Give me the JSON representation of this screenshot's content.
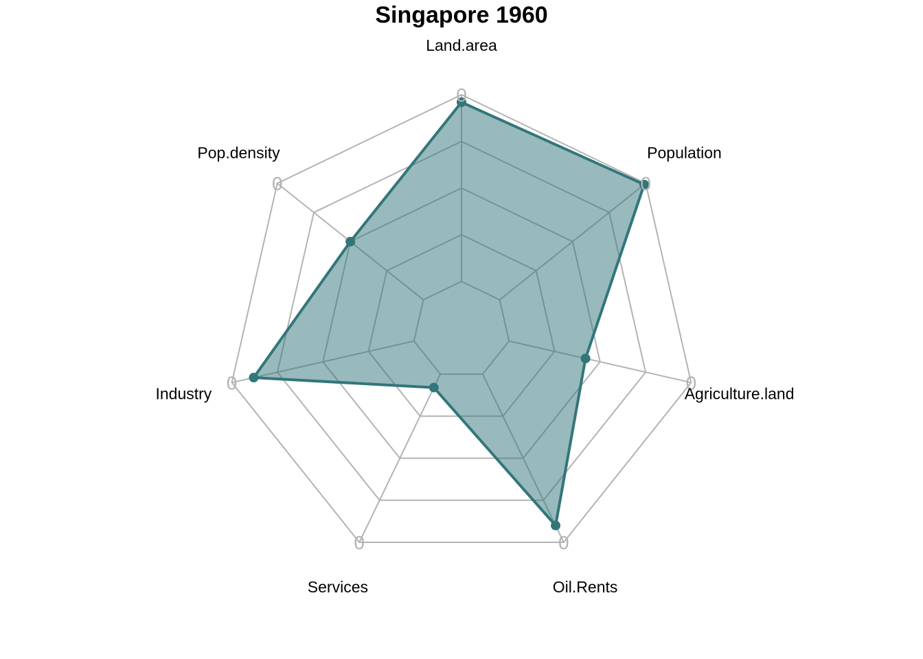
{
  "chart_data": {
    "type": "radar",
    "title": "Singapore 1960",
    "axes": [
      "Land.area",
      "Population",
      "Agriculture.land",
      "Oil.Rents",
      "Services",
      "Industry",
      "Pop.density"
    ],
    "series": [
      {
        "values": [
          0.96,
          0.99,
          0.42,
          0.9,
          0.08,
          0.88,
          0.5
        ]
      }
    ],
    "ring_labels": [
      "0",
      "0",
      "0",
      "0",
      "0",
      "0",
      "0"
    ],
    "range": [
      0,
      1
    ],
    "levels": 4,
    "colors": {
      "series": "#32767a",
      "fill": "#32767a",
      "grid": "#b3b3b3"
    }
  }
}
